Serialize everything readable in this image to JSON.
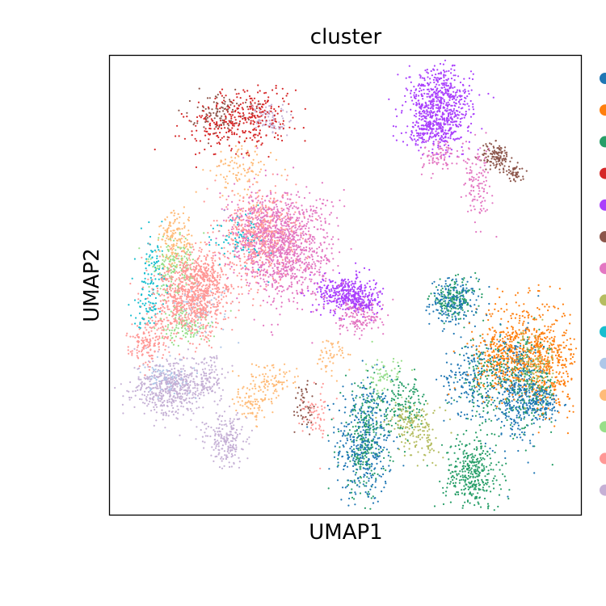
{
  "chart_data": {
    "type": "scatter",
    "title": "cluster",
    "xlabel": "UMAP1",
    "ylabel": "UMAP2",
    "grid": false,
    "ticks": false,
    "legend_placement": "right-outside",
    "xlim": [
      0,
      100
    ],
    "ylim": [
      0,
      100
    ],
    "legend_colors": [
      "#1f77b4",
      "#ff7f0e",
      "#279e68",
      "#d62728",
      "#aa40fc",
      "#8c564b",
      "#e377c2",
      "#b5bd61",
      "#17becf",
      "#aec7e8",
      "#ffbb78",
      "#98df8a",
      "#ff9896",
      "#c5b0d5"
    ],
    "clusters": [
      {
        "color": "#1f77b4",
        "centers": [
          [
            54,
            15.8
          ],
          [
            73,
            46.3
          ],
          [
            86,
            27.1
          ],
          [
            91,
            24.3
          ],
          [
            76,
            30
          ]
        ],
        "spread": [
          [
            3,
            7
          ],
          [
            2.5,
            2.5
          ],
          [
            3,
            6
          ],
          [
            2.5,
            2
          ],
          [
            2.5,
            4
          ]
        ],
        "n": [
          400,
          200,
          350,
          150,
          150
        ]
      },
      {
        "color": "#ff7f0e",
        "centers": [
          [
            88,
            36.8
          ],
          [
            94,
            31
          ],
          [
            83,
            33
          ]
        ],
        "spread": [
          [
            5,
            5
          ],
          [
            2.5,
            5
          ],
          [
            3,
            3
          ]
        ],
        "n": [
          500,
          200,
          150
        ]
      },
      {
        "color": "#279e68",
        "centers": [
          [
            77,
            8.8
          ],
          [
            54,
            16
          ],
          [
            73,
            47
          ],
          [
            89,
            28
          ],
          [
            62,
            24
          ],
          [
            80,
            29
          ]
        ],
        "spread": [
          [
            3,
            4
          ],
          [
            2.5,
            6
          ],
          [
            2.5,
            2
          ],
          [
            3,
            5
          ],
          [
            3,
            3
          ],
          [
            2.5,
            5
          ]
        ],
        "n": [
          350,
          250,
          150,
          200,
          150,
          150
        ]
      },
      {
        "color": "#d62728",
        "centers": [
          [
            31,
            87.7
          ],
          [
            24,
            84
          ]
        ],
        "spread": [
          [
            4,
            3
          ],
          [
            4,
            3
          ]
        ],
        "n": [
          200,
          150
        ]
      },
      {
        "color": "#aa40fc",
        "centers": [
          [
            70,
            89.5
          ],
          [
            69,
            84
          ],
          [
            50,
            48.2
          ],
          [
            54,
            46
          ]
        ],
        "spread": [
          [
            3.5,
            4
          ],
          [
            3,
            2
          ],
          [
            3,
            2
          ],
          [
            2,
            1.5
          ]
        ],
        "n": [
          600,
          200,
          350,
          100
        ]
      },
      {
        "color": "#8c564b",
        "centers": [
          [
            82,
            78.1
          ],
          [
            86,
            74.6
          ],
          [
            41,
            23
          ],
          [
            23,
            88
          ]
        ],
        "spread": [
          [
            1.5,
            1.5
          ],
          [
            1,
            1
          ],
          [
            1,
            3
          ],
          [
            3,
            2
          ]
        ],
        "n": [
          120,
          50,
          50,
          100
        ]
      },
      {
        "color": "#e377c2",
        "centers": [
          [
            38,
            58
          ],
          [
            33,
            61
          ],
          [
            78,
            72
          ],
          [
            53,
            43
          ],
          [
            70,
            78
          ]
        ],
        "spread": [
          [
            5,
            6
          ],
          [
            4,
            5
          ],
          [
            1.5,
            4
          ],
          [
            2.5,
            2
          ],
          [
            2,
            1.5
          ]
        ],
        "n": [
          800,
          400,
          120,
          150,
          80
        ]
      },
      {
        "color": "#b5bd61",
        "centers": [
          [
            66,
            17.5
          ],
          [
            63,
            21
          ],
          [
            90,
            33
          ]
        ],
        "spread": [
          [
            2,
            3
          ],
          [
            2,
            2
          ],
          [
            2,
            3
          ]
        ],
        "n": [
          100,
          80,
          100
        ]
      },
      {
        "color": "#17becf",
        "centers": [
          [
            9,
            53.4
          ],
          [
            28,
            60
          ],
          [
            8,
            45
          ]
        ],
        "spread": [
          [
            1.5,
            4
          ],
          [
            3,
            3
          ],
          [
            1.5,
            2
          ]
        ],
        "n": [
          80,
          80,
          50
        ]
      },
      {
        "color": "#aec7e8",
        "centers": [
          [
            12,
            30
          ],
          [
            20,
            45
          ]
        ],
        "spread": [
          [
            3,
            2
          ],
          [
            3,
            3
          ]
        ],
        "n": [
          80,
          60
        ]
      },
      {
        "color": "#ffbb78",
        "centers": [
          [
            14,
            60
          ],
          [
            28,
            75
          ],
          [
            34,
            29
          ],
          [
            30,
            24
          ],
          [
            47,
            35
          ]
        ],
        "spread": [
          [
            2,
            3
          ],
          [
            3,
            3
          ],
          [
            3,
            2
          ],
          [
            2,
            2
          ],
          [
            1.5,
            2
          ]
        ],
        "n": [
          150,
          100,
          100,
          70,
          50
        ]
      },
      {
        "color": "#98df8a",
        "centers": [
          [
            13,
            54
          ],
          [
            16,
            41
          ],
          [
            58,
            30
          ]
        ],
        "spread": [
          [
            2.5,
            3
          ],
          [
            3,
            2
          ],
          [
            2,
            2
          ]
        ],
        "n": [
          150,
          100,
          60
        ]
      },
      {
        "color": "#ff9896",
        "centers": [
          [
            17,
            46.3
          ],
          [
            8,
            37.4
          ],
          [
            32,
            61
          ],
          [
            20,
            52
          ],
          [
            44,
            22
          ]
        ],
        "spread": [
          [
            4,
            4
          ],
          [
            2,
            2.5
          ],
          [
            4,
            5
          ],
          [
            3,
            3
          ],
          [
            1.5,
            3
          ]
        ],
        "n": [
          700,
          150,
          500,
          300,
          60
        ]
      },
      {
        "color": "#c5b0d5",
        "centers": [
          [
            13,
            27.5
          ],
          [
            24.5,
            16.4
          ],
          [
            34,
            86
          ],
          [
            21,
            30
          ]
        ],
        "spread": [
          [
            4,
            3
          ],
          [
            2,
            3
          ],
          [
            2,
            1.5
          ],
          [
            2.5,
            2.5
          ]
        ],
        "n": [
          500,
          200,
          80,
          100
        ]
      }
    ]
  }
}
